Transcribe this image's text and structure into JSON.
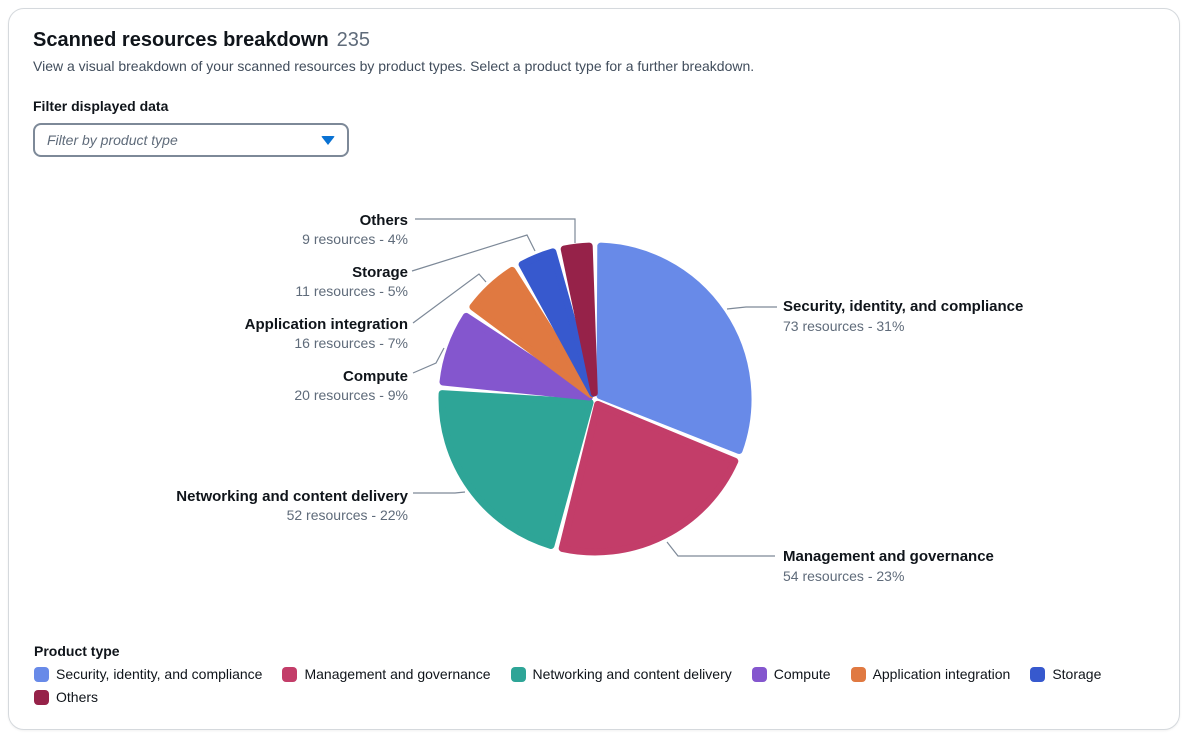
{
  "header": {
    "title": "Scanned resources breakdown",
    "counter": "235",
    "description": "View a visual breakdown of your scanned resources by product types. Select a product type for a further breakdown."
  },
  "filter": {
    "label": "Filter displayed data",
    "placeholder": "Filter by product type",
    "dropdown_icon": "caret-down-filled"
  },
  "legend": {
    "title": "Product type"
  },
  "colors": {
    "accent": "#0972D3",
    "leader_line": "#7D8998",
    "text_secondary": "#5F6B7A"
  },
  "chart_data": {
    "type": "pie",
    "total": 235,
    "unit": "resources",
    "start_angle": 0,
    "direction": "clockwise",
    "legend_position": "bottom",
    "slices": [
      {
        "label": "Security, identity, and compliance",
        "value": 73,
        "percent": 31,
        "detail": "73 resources - 31%",
        "color": "#688AE8"
      },
      {
        "label": "Management and governance",
        "value": 54,
        "percent": 23,
        "detail": "54 resources - 23%",
        "color": "#C33D69"
      },
      {
        "label": "Networking and content delivery",
        "value": 52,
        "percent": 22,
        "detail": "52 resources - 22%",
        "color": "#2EA597"
      },
      {
        "label": "Compute",
        "value": 20,
        "percent": 9,
        "detail": "20 resources - 9%",
        "color": "#8456CE"
      },
      {
        "label": "Application integration",
        "value": 16,
        "percent": 7,
        "detail": "16 resources - 7%",
        "color": "#E07941"
      },
      {
        "label": "Storage",
        "value": 11,
        "percent": 5,
        "detail": "11 resources - 5%",
        "color": "#3759CE"
      },
      {
        "label": "Others",
        "value": 9,
        "percent": 4,
        "detail": "9 resources - 4%",
        "color": "#962249"
      }
    ]
  }
}
